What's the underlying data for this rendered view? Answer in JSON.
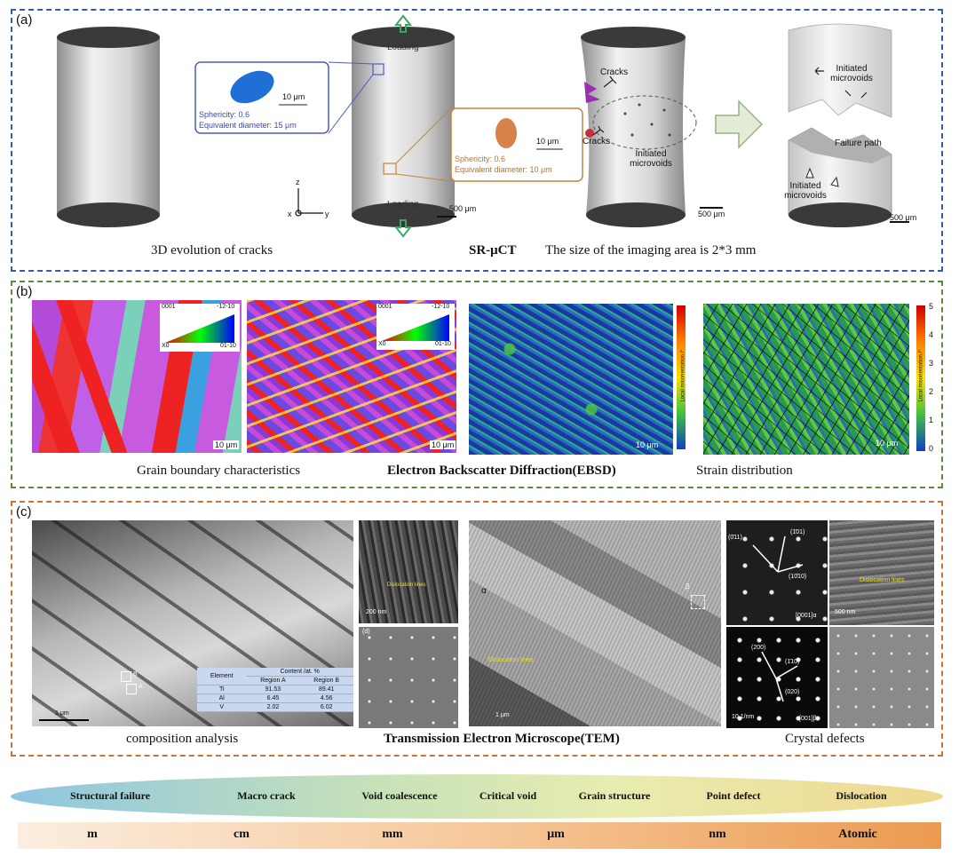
{
  "panel_a": {
    "label": "(a)",
    "loading_top": "Loading",
    "loading_bottom": "Loading",
    "blue_inset": {
      "scale": "10 μm",
      "sphericity": "Sphericity: 0.6",
      "diameter": "Equivalent diameter: 15 μm"
    },
    "orange_inset": {
      "scale": "10 μm",
      "sphericity": "Sphericity: 0.6",
      "diameter": "Equivalent diameter: 10 μm"
    },
    "axes": {
      "z": "z",
      "x": "x",
      "y": "y"
    },
    "scale_bars": [
      "500 μm",
      "500 μm",
      "500 μm"
    ],
    "cracks_1": "Cracks",
    "cracks_2": "Cracks",
    "initiated_microvoids": "Initiated microvoids",
    "initiated_microvoids_top": "Initiated microvoids",
    "failure_path": "Failure path",
    "initiated_microvoids_bottom": "Initiated microvoids",
    "caption_left": "3D evolution of cracks",
    "caption_method": "SR-μCT",
    "caption_right": "The size of the imaging area is 2*3 mm"
  },
  "panel_b": {
    "label": "(b)",
    "ipf_labels": {
      "top_left": "0001",
      "top_right": "-12-10",
      "bottom_left": "X0",
      "bottom_right": "01-10"
    },
    "scale_bars": [
      "10 μm",
      "10 μm",
      "10 μm",
      "10 μm"
    ],
    "colorbar_label": "Local misorientation /°",
    "colorbar_ticks": [
      "5",
      "4",
      "3",
      "2",
      "1",
      "0"
    ],
    "caption_left": "Grain boundary characteristics",
    "caption_method": "Electron Backscatter Diffraction(EBSD)",
    "caption_right": "Strain distribution"
  },
  "panel_c": {
    "label": "(c)",
    "bright_field_scale": "1 μm",
    "regions": [
      "B",
      "A"
    ],
    "table": {
      "header_element": "Element",
      "header_content": "Content /at. %",
      "header_region_a": "Region A",
      "header_region_b": "Region B",
      "rows": [
        {
          "element": "Ti",
          "a": "91.53",
          "b": "89.41"
        },
        {
          "element": "Al",
          "a": "6.45",
          "b": "4.56"
        },
        {
          "element": "V",
          "a": "2.02",
          "b": "6.02"
        }
      ]
    },
    "small_tem_scale": "200 nm",
    "small_tem_label": "Dislocation lines",
    "small_tem_letter": "(d)",
    "center_alpha": "α",
    "center_beta": "β",
    "center_label": "Dislocation lines",
    "center_scale": "1 μm",
    "saed_top": {
      "spots": [
        "(0̄11)",
        "(1̄01)",
        "(10̄10)"
      ],
      "zone": "[0001]α"
    },
    "saed_bottom": {
      "spots": [
        "(200)",
        "(1̄10)",
        "(020)"
      ],
      "zone": "[001]β",
      "scale": "10 1/nm"
    },
    "right_tem_label": "Dislocation lines",
    "right_tem_scale": "500 nm",
    "caption_left": "composition analysis",
    "caption_method": "Transmission Electron Microscope(TEM)",
    "caption_right": "Crystal defects"
  },
  "scales": {
    "phenomena": [
      "Structural failure",
      "Macro crack",
      "Void coalescence",
      "Critical void",
      "Grain structure",
      "Point defect",
      "Dislocation"
    ],
    "units": [
      "m",
      "cm",
      "mm",
      "μm",
      "nm",
      "Atomic"
    ]
  },
  "colors": {
    "panel_a_border": "#3a5ca8",
    "panel_b_border": "#5a8a3a",
    "panel_c_border": "#c8733a",
    "blue_inset": "#4a5ac8",
    "orange_inset": "#c8833a"
  }
}
